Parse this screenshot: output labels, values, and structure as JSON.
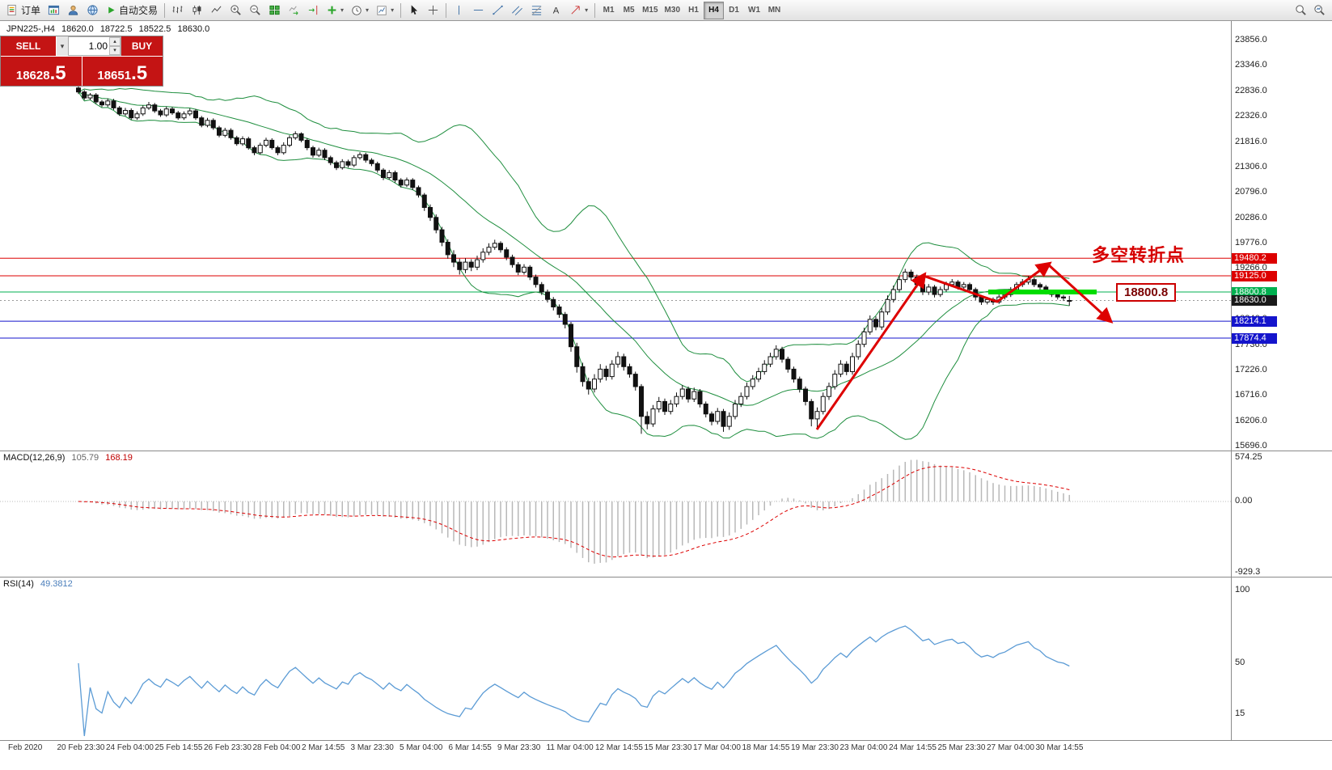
{
  "toolbar": {
    "order_button": "订单",
    "auto_trading_button": "自动交易",
    "timeframes": [
      "M1",
      "M5",
      "M15",
      "M30",
      "H1",
      "H4",
      "D1",
      "W1",
      "MN"
    ],
    "active_timeframe": "H4"
  },
  "icons": {
    "dropdown_caret": "▾",
    "spin_up": "▴",
    "spin_down": "▾"
  },
  "symbol_bar": {
    "symbol": "JPN225-,H4",
    "open": "18620.0",
    "high": "18722.5",
    "low": "18522.5",
    "close": "18630.0"
  },
  "trade_panel": {
    "sell_label": "SELL",
    "buy_label": "BUY",
    "volume": "1.00",
    "sell_price_main": "18628",
    "sell_price_frac": ".5",
    "buy_price_main": "18651",
    "buy_price_frac": ".5"
  },
  "annotations": {
    "turning_point_text": "多空转折点",
    "price_callout": "18800.8"
  },
  "levels": [
    {
      "price": 19480.2,
      "label": "19480.2",
      "color": "#dd0000",
      "type": "red"
    },
    {
      "price": 19125.0,
      "label": "19125.0",
      "color": "#dd0000",
      "type": "red"
    },
    {
      "price": 18800.8,
      "label": "18800.8",
      "color": "#00b050",
      "type": "green"
    },
    {
      "price": 18630.0,
      "label": "18630.0",
      "color": "#1a1a1a",
      "type": "bid"
    },
    {
      "price": 18214.1,
      "label": "18214.1",
      "color": "#1414cc",
      "type": "blue"
    },
    {
      "price": 17874.4,
      "label": "17874.4",
      "color": "#1414cc",
      "type": "blue"
    }
  ],
  "price_axis": [
    "23856.0",
    "23346.0",
    "22836.0",
    "22326.0",
    "21816.0",
    "21306.0",
    "20796.0",
    "20286.0",
    "19776.0",
    "19266.0",
    "18756.0",
    "18246.0",
    "17736.0",
    "17226.0",
    "16716.0",
    "16206.0",
    "15696.0"
  ],
  "macd": {
    "name": "MACD(12,26,9)",
    "value1": "105.79",
    "value2": "168.19",
    "axis": [
      "574.25",
      "0.00",
      "-929.3"
    ]
  },
  "rsi": {
    "name": "RSI(14)",
    "value": "49.3812",
    "axis": [
      "100",
      "50",
      "15"
    ]
  },
  "time_axis": [
    "Feb 2020",
    "20 Feb 23:30",
    "24 Feb 04:00",
    "25 Feb 14:55",
    "26 Feb 23:30",
    "28 Feb 04:00",
    "2 Mar 14:55",
    "3 Mar 23:30",
    "5 Mar 04:00",
    "6 Mar 14:55",
    "9 Mar 23:30",
    "11 Mar 04:00",
    "12 Mar 14:55",
    "15 Mar 23:30",
    "17 Mar 04:00",
    "18 Mar 14:55",
    "19 Mar 23:30",
    "23 Mar 04:00",
    "24 Mar 14:55",
    "25 Mar 23:30",
    "27 Mar 04:00",
    "30 Mar 14:55"
  ],
  "chart_data": {
    "type": "candlestick",
    "symbol": "JPN225-",
    "timeframe": "H4",
    "ylim": [
      15696,
      23856
    ],
    "indicators": [
      "Bollinger Bands(20,2)",
      "MACD(12,26,9)",
      "RSI(14)"
    ],
    "candles": [
      [
        22900,
        22950,
        22780,
        22820
      ],
      [
        22820,
        22860,
        22660,
        22700
      ],
      [
        22700,
        22800,
        22660,
        22760
      ],
      [
        22760,
        22800,
        22580,
        22620
      ],
      [
        22620,
        22660,
        22520,
        22560
      ],
      [
        22560,
        22690,
        22520,
        22640
      ],
      [
        22640,
        22680,
        22460,
        22500
      ],
      [
        22500,
        22540,
        22340,
        22380
      ],
      [
        22380,
        22500,
        22340,
        22450
      ],
      [
        22450,
        22490,
        22260,
        22300
      ],
      [
        22300,
        22430,
        22260,
        22380
      ],
      [
        22380,
        22550,
        22340,
        22500
      ],
      [
        22500,
        22620,
        22460,
        22560
      ],
      [
        22560,
        22600,
        22400,
        22440
      ],
      [
        22440,
        22480,
        22320,
        22360
      ],
      [
        22360,
        22530,
        22320,
        22480
      ],
      [
        22480,
        22520,
        22360,
        22400
      ],
      [
        22400,
        22440,
        22260,
        22300
      ],
      [
        22300,
        22430,
        22260,
        22380
      ],
      [
        22380,
        22490,
        22340,
        22440
      ],
      [
        22440,
        22480,
        22260,
        22300
      ],
      [
        22300,
        22340,
        22110,
        22150
      ],
      [
        22150,
        22300,
        22110,
        22250
      ],
      [
        22250,
        22290,
        22060,
        22100
      ],
      [
        22100,
        22140,
        21910,
        21950
      ],
      [
        21950,
        22100,
        21910,
        22050
      ],
      [
        22050,
        22090,
        21860,
        21900
      ],
      [
        21900,
        21940,
        21740,
        21780
      ],
      [
        21780,
        21930,
        21740,
        21880
      ],
      [
        21880,
        21920,
        21660,
        21700
      ],
      [
        21700,
        21740,
        21550,
        21600
      ],
      [
        21600,
        21800,
        21560,
        21750
      ],
      [
        21750,
        21900,
        21710,
        21850
      ],
      [
        21850,
        21890,
        21660,
        21700
      ],
      [
        21700,
        21740,
        21550,
        21600
      ],
      [
        21600,
        21810,
        21560,
        21750
      ],
      [
        21750,
        21950,
        21710,
        21900
      ],
      [
        21900,
        22030,
        21860,
        21980
      ],
      [
        21980,
        22010,
        21810,
        21850
      ],
      [
        21850,
        21890,
        21650,
        21700
      ],
      [
        21700,
        21740,
        21500,
        21550
      ],
      [
        21550,
        21700,
        21510,
        21650
      ],
      [
        21650,
        21690,
        21450,
        21500
      ],
      [
        21500,
        21540,
        21350,
        21400
      ],
      [
        21400,
        21440,
        21250,
        21300
      ],
      [
        21300,
        21470,
        21260,
        21420
      ],
      [
        21420,
        21460,
        21300,
        21350
      ],
      [
        21350,
        21550,
        21310,
        21500
      ],
      [
        21500,
        21610,
        21460,
        21560
      ],
      [
        21560,
        21600,
        21400,
        21450
      ],
      [
        21450,
        21490,
        21330,
        21380
      ],
      [
        21380,
        21420,
        21200,
        21250
      ],
      [
        21250,
        21290,
        21050,
        21100
      ],
      [
        21100,
        21250,
        21060,
        21200
      ],
      [
        21200,
        21240,
        21000,
        21050
      ],
      [
        21050,
        21090,
        20900,
        20950
      ],
      [
        20950,
        21100,
        20910,
        21050
      ],
      [
        21050,
        21090,
        20850,
        20900
      ],
      [
        20900,
        20940,
        20700,
        20750
      ],
      [
        20750,
        20790,
        20430,
        20500
      ],
      [
        20500,
        20560,
        20230,
        20300
      ],
      [
        20300,
        20360,
        19980,
        20050
      ],
      [
        20050,
        20110,
        19720,
        19800
      ],
      [
        19800,
        19860,
        19470,
        19550
      ],
      [
        19550,
        19640,
        19300,
        19400
      ],
      [
        19400,
        19470,
        19150,
        19250
      ],
      [
        19250,
        19480,
        19180,
        19400
      ],
      [
        19400,
        19460,
        19220,
        19300
      ],
      [
        19300,
        19530,
        19240,
        19450
      ],
      [
        19450,
        19680,
        19390,
        19600
      ],
      [
        19600,
        19780,
        19540,
        19700
      ],
      [
        19700,
        19850,
        19650,
        19780
      ],
      [
        19780,
        19820,
        19590,
        19650
      ],
      [
        19650,
        19700,
        19440,
        19500
      ],
      [
        19500,
        19550,
        19290,
        19350
      ],
      [
        19350,
        19400,
        19140,
        19200
      ],
      [
        19200,
        19360,
        19150,
        19300
      ],
      [
        19300,
        19340,
        19040,
        19100
      ],
      [
        19100,
        19150,
        18890,
        18950
      ],
      [
        18950,
        19000,
        18740,
        18800
      ],
      [
        18800,
        18850,
        18590,
        18650
      ],
      [
        18650,
        18700,
        18430,
        18500
      ],
      [
        18500,
        18550,
        18280,
        18350
      ],
      [
        18350,
        18400,
        18070,
        18150
      ],
      [
        18150,
        18200,
        17600,
        17700
      ],
      [
        17700,
        17780,
        17180,
        17300
      ],
      [
        17300,
        17380,
        16900,
        17000
      ],
      [
        17000,
        17080,
        16740,
        16850
      ],
      [
        16850,
        17150,
        16780,
        17050
      ],
      [
        17050,
        17350,
        16980,
        17250
      ],
      [
        17250,
        17320,
        17020,
        17100
      ],
      [
        17100,
        17430,
        17040,
        17350
      ],
      [
        17350,
        17600,
        17280,
        17500
      ],
      [
        17500,
        17560,
        17220,
        17300
      ],
      [
        17300,
        17360,
        17080,
        17150
      ],
      [
        17150,
        17200,
        16820,
        16900
      ],
      [
        16900,
        16950,
        15950,
        16300
      ],
      [
        16300,
        16400,
        16040,
        16150
      ],
      [
        16150,
        16530,
        16090,
        16450
      ],
      [
        16450,
        16690,
        16380,
        16600
      ],
      [
        16600,
        16660,
        16330,
        16400
      ],
      [
        16400,
        16630,
        16340,
        16550
      ],
      [
        16550,
        16780,
        16490,
        16700
      ],
      [
        16700,
        16930,
        16640,
        16850
      ],
      [
        16850,
        16900,
        16580,
        16650
      ],
      [
        16650,
        16880,
        16590,
        16800
      ],
      [
        16800,
        16850,
        16480,
        16550
      ],
      [
        16550,
        16600,
        16280,
        16350
      ],
      [
        16350,
        16400,
        16120,
        16200
      ],
      [
        16200,
        16470,
        16140,
        16400
      ],
      [
        16400,
        16450,
        15990,
        16100
      ],
      [
        16100,
        16380,
        16030,
        16300
      ],
      [
        16300,
        16630,
        16240,
        16550
      ],
      [
        16550,
        16780,
        16490,
        16700
      ],
      [
        16700,
        16980,
        16640,
        16900
      ],
      [
        16900,
        17130,
        16840,
        17050
      ],
      [
        17050,
        17280,
        16990,
        17200
      ],
      [
        17200,
        17430,
        17140,
        17350
      ],
      [
        17350,
        17580,
        17290,
        17500
      ],
      [
        17500,
        17730,
        17440,
        17650
      ],
      [
        17650,
        17700,
        17380,
        17450
      ],
      [
        17450,
        17500,
        17180,
        17250
      ],
      [
        17250,
        17300,
        16980,
        17050
      ],
      [
        17050,
        17100,
        16780,
        16850
      ],
      [
        16850,
        16900,
        16520,
        16600
      ],
      [
        16600,
        16650,
        16100,
        16250
      ],
      [
        16250,
        16480,
        16050,
        16400
      ],
      [
        16400,
        16780,
        16340,
        16700
      ],
      [
        16700,
        16980,
        16630,
        16900
      ],
      [
        16900,
        17230,
        16840,
        17150
      ],
      [
        17150,
        17430,
        17090,
        17350
      ],
      [
        17350,
        17410,
        17130,
        17200
      ],
      [
        17200,
        17580,
        17140,
        17500
      ],
      [
        17500,
        17830,
        17440,
        17750
      ],
      [
        17750,
        18080,
        17690,
        18000
      ],
      [
        18000,
        18330,
        17940,
        18250
      ],
      [
        18250,
        18310,
        18030,
        18100
      ],
      [
        18100,
        18480,
        18040,
        18400
      ],
      [
        18400,
        18730,
        18340,
        18650
      ],
      [
        18650,
        18930,
        18590,
        18850
      ],
      [
        18850,
        19130,
        18790,
        19050
      ],
      [
        19050,
        19266,
        18990,
        19200
      ],
      [
        19200,
        19250,
        19030,
        19100
      ],
      [
        19100,
        19150,
        18890,
        18950
      ],
      [
        18950,
        19000,
        18740,
        18800
      ],
      [
        18800,
        18960,
        18740,
        18900
      ],
      [
        18900,
        18940,
        18690,
        18750
      ],
      [
        18750,
        18910,
        18700,
        18850
      ],
      [
        18850,
        19010,
        18800,
        18950
      ],
      [
        18950,
        19060,
        18900,
        19000
      ],
      [
        19000,
        19040,
        18850,
        18900
      ],
      [
        18900,
        19000,
        18850,
        18950
      ],
      [
        18950,
        18990,
        18800,
        18850
      ],
      [
        18850,
        18890,
        18640,
        18700
      ],
      [
        18700,
        18740,
        18540,
        18600
      ],
      [
        18600,
        18700,
        18550,
        18650
      ],
      [
        18650,
        18690,
        18540,
        18600
      ],
      [
        18600,
        18750,
        18560,
        18700
      ],
      [
        18700,
        18800,
        18650,
        18750
      ],
      [
        18750,
        18900,
        18700,
        18850
      ],
      [
        18850,
        19000,
        18800,
        18950
      ],
      [
        18950,
        19060,
        18900,
        19000
      ],
      [
        19000,
        19120,
        18950,
        19050
      ],
      [
        19050,
        19090,
        18900,
        18950
      ],
      [
        18950,
        18990,
        18850,
        18900
      ],
      [
        18900,
        18940,
        18750,
        18800
      ],
      [
        18800,
        18840,
        18700,
        18750
      ],
      [
        18750,
        18790,
        18650,
        18700
      ],
      [
        18700,
        18740,
        18620,
        18680
      ],
      [
        18620,
        18722.5,
        18522.5,
        18630
      ]
    ]
  }
}
